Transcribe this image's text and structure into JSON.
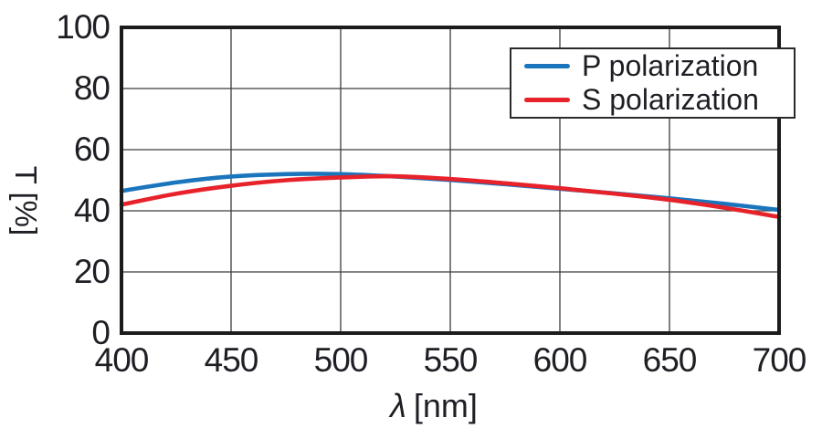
{
  "figure": {
    "background": "#ffffff",
    "frame_color": "#1c1c1c",
    "grid_color": "#3c3c3c",
    "text_color": "#1e1f24"
  },
  "chart_data": {
    "type": "line",
    "title": "",
    "xlabel": "[nm]",
    "xlabel_symbol": "λ",
    "ylabel": "T [%]",
    "xlim": [
      400,
      700
    ],
    "ylim": [
      0,
      100
    ],
    "xticks": [
      400,
      450,
      500,
      550,
      600,
      650,
      700
    ],
    "yticks": [
      0,
      20,
      40,
      60,
      80,
      100
    ],
    "grid": true,
    "legend_position": "upper right",
    "x": [
      400,
      425,
      450,
      475,
      500,
      525,
      550,
      575,
      600,
      625,
      650,
      675,
      700
    ],
    "series": [
      {
        "name": "P polarization",
        "color": "#1b75bc",
        "values": [
          46.5,
          49.3,
          51.2,
          52.0,
          52.0,
          51.2,
          50.1,
          48.7,
          47.2,
          45.7,
          44.1,
          42.3,
          40.3
        ]
      },
      {
        "name": "S polarization",
        "color": "#e7222a",
        "values": [
          42.0,
          45.6,
          48.2,
          50.0,
          50.9,
          51.3,
          50.4,
          49.0,
          47.4,
          45.6,
          43.6,
          41.0,
          38.0
        ]
      }
    ]
  }
}
